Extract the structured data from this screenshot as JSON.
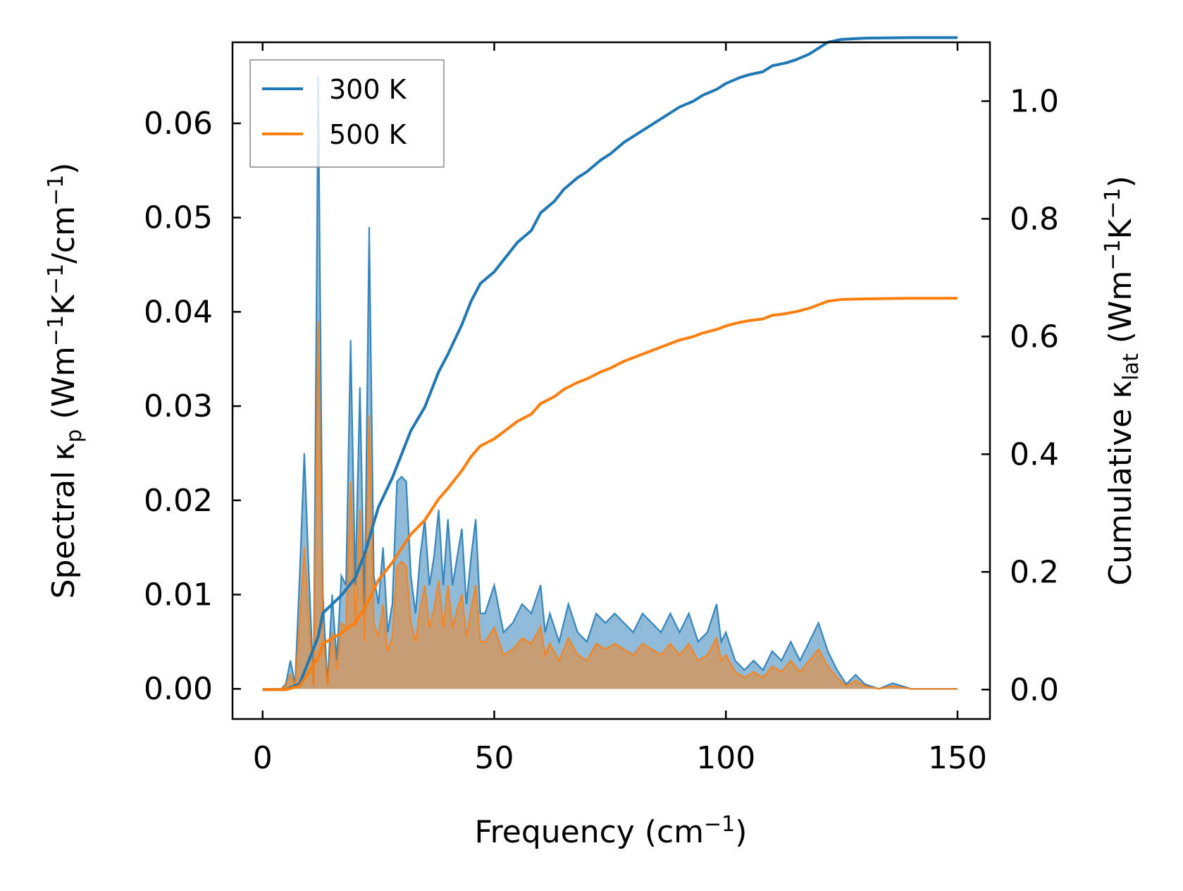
{
  "chart_data": {
    "type": "area",
    "xlabel": "Frequency (cm",
    "xlabel_sup": "−1",
    "xlabel_tail": ")",
    "ylabel_left": {
      "prefix": "Spectral κ",
      "sub": "p",
      "unit_a": " (Wm",
      "sup_a": "−1",
      "unit_b": "K",
      "sup_b": "−1",
      "unit_c": "/cm",
      "sup_c": "−1",
      "unit_d": ")"
    },
    "ylabel_right": {
      "prefix": "Cumulative κ",
      "sub": "lat",
      "unit_a": " (Wm",
      "sup_a": "−1",
      "unit_b": "K",
      "sup_b": "−1",
      "unit_d": ")"
    },
    "xlim": [
      -6.5,
      157
    ],
    "ylim_left": [
      -0.0032,
      0.0686
    ],
    "ylim_right": [
      -0.05,
      1.1
    ],
    "xticks": [
      0,
      50,
      100,
      150
    ],
    "xtick_labels": [
      "0",
      "50",
      "100",
      "150"
    ],
    "yticks_left": [
      0,
      0.01,
      0.02,
      0.03,
      0.04,
      0.05,
      0.06
    ],
    "ytick_labels_left": [
      "0.00",
      "0.01",
      "0.02",
      "0.03",
      "0.04",
      "0.05",
      "0.06"
    ],
    "yticks_right": [
      0,
      0.2,
      0.4,
      0.6,
      0.8,
      1.0
    ],
    "ytick_labels_right": [
      "0.0",
      "0.2",
      "0.4",
      "0.6",
      "0.8",
      "1.0"
    ],
    "legend_position": "top-left",
    "series": [
      {
        "name": "300 K",
        "color": "#1f77b4",
        "spectral": {
          "x": [
            0,
            4,
            5,
            6,
            7,
            8,
            9,
            10,
            11,
            12,
            13,
            14,
            15,
            16,
            17,
            18,
            19,
            20,
            21,
            22,
            23,
            24,
            25,
            26,
            27,
            28,
            29,
            30,
            31,
            32,
            33,
            34,
            35,
            36,
            37,
            38,
            39,
            40,
            41,
            42,
            43,
            44,
            45,
            46,
            47,
            48,
            50,
            52,
            54,
            56,
            58,
            60,
            61,
            62,
            64,
            66,
            68,
            70,
            72,
            74,
            76,
            78,
            80,
            82,
            84,
            86,
            88,
            90,
            92,
            94,
            96,
            98,
            99,
            100,
            102,
            104,
            106,
            108,
            110,
            112,
            114,
            116,
            118,
            120,
            122,
            124,
            126,
            128,
            130,
            133,
            136,
            140,
            145,
            150
          ],
          "values": [
            0,
            0,
            0.0005,
            0.003,
            0.0005,
            0.012,
            0.025,
            0.012,
            0.0005,
            0.065,
            0.01,
            0.0005,
            0.01,
            0.003,
            0.012,
            0.011,
            0.037,
            0.011,
            0.032,
            0.008,
            0.049,
            0.012,
            0.009,
            0.015,
            0.006,
            0.009,
            0.022,
            0.0225,
            0.022,
            0.012,
            0.008,
            0.014,
            0.018,
            0.011,
            0.014,
            0.019,
            0.011,
            0.018,
            0.011,
            0.014,
            0.017,
            0.009,
            0.014,
            0.018,
            0.008,
            0.008,
            0.011,
            0.006,
            0.007,
            0.009,
            0.008,
            0.011,
            0.006,
            0.008,
            0.005,
            0.009,
            0.006,
            0.005,
            0.008,
            0.007,
            0.008,
            0.007,
            0.006,
            0.008,
            0.007,
            0.006,
            0.008,
            0.006,
            0.008,
            0.005,
            0.006,
            0.009,
            0.005,
            0.006,
            0.003,
            0.002,
            0.003,
            0.002,
            0.004,
            0.003,
            0.005,
            0.003,
            0.005,
            0.007,
            0.004,
            0.002,
            0.0005,
            0.0015,
            0.0005,
            0,
            0.0006,
            0,
            0,
            0
          ]
        },
        "cumulative": {
          "x": [
            0,
            5,
            8,
            10,
            12,
            13,
            15,
            17,
            20,
            22,
            25,
            28,
            30,
            32,
            35,
            38,
            40,
            43,
            45,
            47,
            50,
            53,
            55,
            58,
            60,
            63,
            65,
            68,
            70,
            73,
            75,
            78,
            80,
            83,
            85,
            88,
            90,
            93,
            95,
            98,
            100,
            103,
            105,
            108,
            110,
            113,
            115,
            118,
            120,
            122,
            125,
            130,
            140,
            150
          ],
          "values": [
            0,
            0,
            0.01,
            0.05,
            0.09,
            0.13,
            0.145,
            0.16,
            0.19,
            0.23,
            0.31,
            0.36,
            0.4,
            0.44,
            0.48,
            0.54,
            0.57,
            0.62,
            0.66,
            0.69,
            0.71,
            0.74,
            0.76,
            0.78,
            0.81,
            0.83,
            0.85,
            0.87,
            0.88,
            0.9,
            0.91,
            0.93,
            0.94,
            0.955,
            0.965,
            0.98,
            0.99,
            1.0,
            1.01,
            1.02,
            1.03,
            1.04,
            1.045,
            1.05,
            1.06,
            1.065,
            1.07,
            1.08,
            1.09,
            1.1,
            1.105,
            1.107,
            1.108,
            1.108
          ]
        }
      },
      {
        "name": "500 K",
        "color": "#ff7f0e",
        "spectral": {
          "x": [
            0,
            4,
            5,
            6,
            7,
            8,
            9,
            10,
            11,
            12,
            13,
            14,
            15,
            16,
            17,
            18,
            19,
            20,
            21,
            22,
            23,
            24,
            25,
            26,
            27,
            28,
            29,
            30,
            31,
            32,
            33,
            34,
            35,
            36,
            37,
            38,
            39,
            40,
            41,
            42,
            43,
            44,
            45,
            46,
            47,
            48,
            50,
            52,
            54,
            56,
            58,
            60,
            61,
            62,
            64,
            66,
            68,
            70,
            72,
            74,
            76,
            78,
            80,
            82,
            84,
            86,
            88,
            90,
            92,
            94,
            96,
            98,
            99,
            100,
            102,
            104,
            106,
            108,
            110,
            112,
            114,
            116,
            118,
            120,
            122,
            124,
            126,
            128,
            130,
            133,
            136,
            140,
            145,
            150
          ],
          "values": [
            0,
            0,
            0.0003,
            0.0015,
            0.0003,
            0.007,
            0.015,
            0.007,
            0.0003,
            0.039,
            0.006,
            0.0003,
            0.006,
            0.002,
            0.007,
            0.0065,
            0.022,
            0.0065,
            0.019,
            0.005,
            0.029,
            0.007,
            0.0055,
            0.009,
            0.004,
            0.0055,
            0.013,
            0.0135,
            0.013,
            0.007,
            0.005,
            0.0085,
            0.011,
            0.0065,
            0.0085,
            0.0115,
            0.0065,
            0.011,
            0.0065,
            0.0085,
            0.01,
            0.0055,
            0.0085,
            0.011,
            0.005,
            0.005,
            0.0065,
            0.0036,
            0.0042,
            0.0054,
            0.0048,
            0.0066,
            0.0036,
            0.0048,
            0.003,
            0.0054,
            0.0036,
            0.003,
            0.0048,
            0.0042,
            0.0048,
            0.0042,
            0.0036,
            0.0048,
            0.0042,
            0.0036,
            0.0048,
            0.0036,
            0.0048,
            0.003,
            0.0036,
            0.0054,
            0.003,
            0.0036,
            0.0018,
            0.0012,
            0.0018,
            0.0012,
            0.0024,
            0.0018,
            0.003,
            0.0018,
            0.003,
            0.0042,
            0.0024,
            0.0012,
            0.0003,
            0.0009,
            0.0003,
            0,
            0.0003,
            0,
            0,
            0
          ]
        },
        "cumulative": {
          "x": [
            0,
            5,
            8,
            10,
            12,
            13,
            15,
            17,
            20,
            22,
            25,
            28,
            30,
            32,
            35,
            38,
            40,
            43,
            45,
            47,
            50,
            53,
            55,
            58,
            60,
            63,
            65,
            68,
            70,
            73,
            75,
            78,
            80,
            83,
            85,
            88,
            90,
            93,
            95,
            98,
            100,
            103,
            105,
            108,
            110,
            113,
            115,
            118,
            120,
            122,
            125,
            130,
            140,
            150
          ],
          "values": [
            0,
            0,
            0.006,
            0.03,
            0.054,
            0.078,
            0.087,
            0.096,
            0.114,
            0.138,
            0.186,
            0.216,
            0.24,
            0.264,
            0.288,
            0.324,
            0.342,
            0.372,
            0.396,
            0.414,
            0.426,
            0.444,
            0.456,
            0.468,
            0.486,
            0.498,
            0.51,
            0.522,
            0.528,
            0.54,
            0.546,
            0.558,
            0.564,
            0.573,
            0.579,
            0.588,
            0.594,
            0.6,
            0.606,
            0.612,
            0.618,
            0.624,
            0.627,
            0.63,
            0.636,
            0.639,
            0.642,
            0.648,
            0.654,
            0.66,
            0.663,
            0.664,
            0.665,
            0.665
          ]
        }
      }
    ]
  }
}
